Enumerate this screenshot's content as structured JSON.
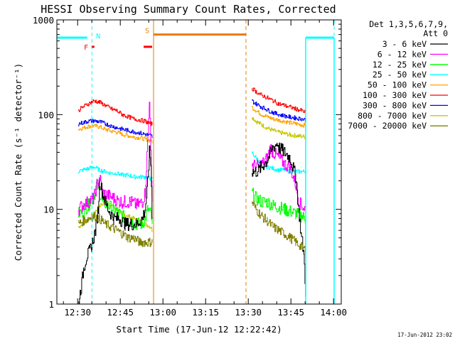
{
  "chart_data": {
    "type": "line",
    "title": "HESSI Observing Summary Count Rates, Corrected",
    "xlabel": "Start Time (17-Jun-12 12:22:42)",
    "ylabel": "Corrected Count Rate (s⁻¹ detector⁻¹)",
    "y_scale": "log",
    "ylim": [
      1,
      1000
    ],
    "x_unit": "minutes since 12:22:42",
    "xlim": [
      0,
      100
    ],
    "x_tick_minutes": [
      7.3,
      22.3,
      37.3,
      52.3,
      67.3,
      82.3,
      97.3
    ],
    "x_tick_labels": [
      "12:30",
      "12:45",
      "13:00",
      "13:15",
      "13:30",
      "13:45",
      "14:00"
    ],
    "y_tick_values": [
      1,
      10,
      100,
      1000
    ],
    "y_tick_labels": [
      "1",
      "10",
      "100",
      "1000"
    ],
    "legend_header": [
      "Det 1,3,5,6,7,9,",
      "Att 0"
    ],
    "legend_position": "right",
    "series": [
      {
        "name": "3 - 6 keV",
        "color": "#000000",
        "segments": [
          [
            [
              7.5,
              1
            ],
            [
              8.5,
              1.5
            ],
            [
              9.5,
              2.5
            ],
            [
              10.5,
              3.2
            ],
            [
              11.5,
              3.6
            ],
            [
              12.5,
              4.5
            ],
            [
              13.5,
              6
            ],
            [
              14.5,
              10
            ],
            [
              15,
              20
            ],
            [
              16,
              15
            ],
            [
              17,
              12
            ],
            [
              18,
              10
            ],
            [
              20,
              8
            ],
            [
              22,
              8
            ],
            [
              24,
              7
            ],
            [
              26,
              7
            ],
            [
              28,
              7
            ],
            [
              30,
              8
            ],
            [
              31,
              10
            ],
            [
              32,
              20
            ],
            [
              32.5,
              40
            ],
            [
              33,
              30
            ],
            [
              33.5,
              8
            ]
          ],
          [
            [
              68.5,
              25
            ],
            [
              70,
              25
            ],
            [
              71,
              26
            ],
            [
              72,
              28
            ],
            [
              74,
              33
            ],
            [
              76,
              45
            ],
            [
              77.5,
              50
            ],
            [
              78,
              45
            ],
            [
              80,
              40
            ],
            [
              82,
              35
            ],
            [
              84,
              22
            ],
            [
              85,
              10
            ],
            [
              86,
              5
            ],
            [
              87,
              3
            ],
            [
              87.5,
              1
            ]
          ]
        ]
      },
      {
        "name": "6 - 12 keV",
        "color": "#ff00ff",
        "segments": [
          [
            [
              7.5,
              10
            ],
            [
              9,
              11
            ],
            [
              11,
              12
            ],
            [
              13,
              13
            ],
            [
              14,
              18
            ],
            [
              15,
              22
            ],
            [
              16,
              15
            ],
            [
              18,
              14
            ],
            [
              20,
              13
            ],
            [
              22,
              12
            ],
            [
              24,
              12
            ],
            [
              26,
              12
            ],
            [
              28,
              11
            ],
            [
              30,
              12
            ],
            [
              31,
              15
            ],
            [
              32,
              60
            ],
            [
              32.5,
              150
            ],
            [
              33,
              40
            ],
            [
              33.5,
              12
            ]
          ],
          [
            [
              68.5,
              30
            ],
            [
              70,
              28
            ],
            [
              72,
              30
            ],
            [
              74,
              35
            ],
            [
              75,
              45
            ],
            [
              76,
              40
            ],
            [
              78,
              35
            ],
            [
              80,
              30
            ],
            [
              82,
              28
            ],
            [
              84,
              18
            ],
            [
              85,
              12
            ],
            [
              86,
              11
            ],
            [
              87.5,
              10
            ]
          ]
        ]
      },
      {
        "name": "12 - 25 keV",
        "color": "#00ff00",
        "segments": [
          [
            [
              7.5,
              9
            ],
            [
              9,
              9.5
            ],
            [
              11,
              11
            ],
            [
              13,
              14
            ],
            [
              14,
              18
            ],
            [
              15,
              15
            ],
            [
              16,
              12
            ],
            [
              18,
              11
            ],
            [
              20,
              10
            ],
            [
              22,
              9
            ],
            [
              24,
              8
            ],
            [
              26,
              7.5
            ],
            [
              28,
              7
            ],
            [
              30,
              7
            ],
            [
              31,
              8
            ],
            [
              32,
              10
            ],
            [
              33,
              9
            ],
            [
              33.5,
              7
            ]
          ],
          [
            [
              68.5,
              15
            ],
            [
              70,
              13
            ],
            [
              72,
              12
            ],
            [
              74,
              12
            ],
            [
              76,
              11
            ],
            [
              78,
              10.5
            ],
            [
              80,
              10
            ],
            [
              82,
              9.5
            ],
            [
              84,
              9
            ],
            [
              86,
              8.5
            ],
            [
              87.5,
              8
            ]
          ]
        ]
      },
      {
        "name": "25 - 50 keV",
        "color": "#00ffff",
        "segments": [
          [
            [
              7.5,
              25
            ],
            [
              9,
              26
            ],
            [
              11,
              27
            ],
            [
              13,
              28
            ],
            [
              15,
              26
            ],
            [
              17,
              25
            ],
            [
              19,
              24
            ],
            [
              21,
              24
            ],
            [
              23,
              23
            ],
            [
              25,
              23
            ],
            [
              27,
              22
            ],
            [
              29,
              22
            ],
            [
              31,
              22
            ],
            [
              33,
              21
            ],
            [
              33.5,
              21
            ]
          ],
          [
            [
              68.5,
              40
            ],
            [
              70,
              35
            ],
            [
              72,
              30
            ],
            [
              74,
              28
            ],
            [
              76,
              27
            ],
            [
              78,
              26
            ],
            [
              80,
              26
            ],
            [
              82,
              25
            ],
            [
              84,
              25
            ],
            [
              86,
              25
            ],
            [
              87.5,
              25
            ]
          ]
        ]
      },
      {
        "name": "50 - 100 keV",
        "color": "#ffa500",
        "segments": [
          [
            [
              7.5,
              70
            ],
            [
              9,
              72
            ],
            [
              11,
              75
            ],
            [
              13,
              76
            ],
            [
              15,
              74
            ],
            [
              17,
              70
            ],
            [
              19,
              67
            ],
            [
              21,
              65
            ],
            [
              23,
              62
            ],
            [
              25,
              60
            ],
            [
              27,
              58
            ],
            [
              29,
              57
            ],
            [
              31,
              55
            ],
            [
              33,
              53
            ],
            [
              33.5,
              52
            ]
          ],
          [
            [
              68.5,
              120
            ],
            [
              70,
              110
            ],
            [
              72,
              100
            ],
            [
              74,
              95
            ],
            [
              76,
              90
            ],
            [
              78,
              87
            ],
            [
              80,
              85
            ],
            [
              82,
              82
            ],
            [
              84,
              80
            ],
            [
              86,
              78
            ],
            [
              87.5,
              77
            ]
          ]
        ]
      },
      {
        "name": "100 - 300 keV",
        "color": "#ff0000",
        "segments": [
          [
            [
              7.5,
              110
            ],
            [
              9,
              120
            ],
            [
              11,
              130
            ],
            [
              13,
              140
            ],
            [
              15,
              135
            ],
            [
              17,
              125
            ],
            [
              19,
              115
            ],
            [
              21,
              110
            ],
            [
              23,
              100
            ],
            [
              25,
              95
            ],
            [
              27,
              90
            ],
            [
              29,
              88
            ],
            [
              31,
              85
            ],
            [
              33,
              80
            ],
            [
              33.5,
              80
            ]
          ],
          [
            [
              68.5,
              190
            ],
            [
              70,
              175
            ],
            [
              72,
              160
            ],
            [
              74,
              150
            ],
            [
              76,
              140
            ],
            [
              78,
              130
            ],
            [
              80,
              125
            ],
            [
              82,
              120
            ],
            [
              84,
              115
            ],
            [
              86,
              110
            ],
            [
              87.5,
              105
            ]
          ]
        ]
      },
      {
        "name": "300 - 800 keV",
        "color": "#0000ff",
        "segments": [
          [
            [
              7.5,
              80
            ],
            [
              9,
              82
            ],
            [
              11,
              85
            ],
            [
              13,
              86
            ],
            [
              15,
              84
            ],
            [
              17,
              80
            ],
            [
              19,
              76
            ],
            [
              21,
              73
            ],
            [
              23,
              70
            ],
            [
              25,
              68
            ],
            [
              27,
              66
            ],
            [
              29,
              64
            ],
            [
              31,
              62
            ],
            [
              33,
              60
            ],
            [
              33.5,
              58
            ]
          ],
          [
            [
              68.5,
              140
            ],
            [
              70,
              130
            ],
            [
              72,
              120
            ],
            [
              74,
              112
            ],
            [
              76,
              105
            ],
            [
              78,
              100
            ],
            [
              80,
              97
            ],
            [
              82,
              94
            ],
            [
              84,
              92
            ],
            [
              86,
              90
            ],
            [
              87.5,
              88
            ]
          ]
        ]
      },
      {
        "name": "800 - 7000 keV",
        "color": "#c8c800",
        "segments": [
          [
            [
              7.5,
              6.5
            ],
            [
              9,
              7
            ],
            [
              11,
              8
            ],
            [
              13,
              9
            ],
            [
              15,
              11
            ],
            [
              17,
              12
            ],
            [
              19,
              11
            ],
            [
              21,
              10
            ],
            [
              23,
              9
            ],
            [
              25,
              8.5
            ],
            [
              27,
              8
            ],
            [
              29,
              7.5
            ],
            [
              31,
              7
            ],
            [
              33,
              6.5
            ],
            [
              33.5,
              6
            ]
          ],
          [
            [
              68.5,
              95
            ],
            [
              70,
              85
            ],
            [
              72,
              78
            ],
            [
              74,
              72
            ],
            [
              76,
              68
            ],
            [
              78,
              65
            ],
            [
              80,
              63
            ],
            [
              82,
              61
            ],
            [
              84,
              60
            ],
            [
              86,
              59
            ],
            [
              87.5,
              58
            ]
          ]
        ]
      },
      {
        "name": "7000 - 20000 keV",
        "color": "#808000",
        "segments": [
          [
            [
              7.5,
              7
            ],
            [
              9,
              7.5
            ],
            [
              11,
              8
            ],
            [
              13,
              8.5
            ],
            [
              15,
              8
            ],
            [
              17,
              7
            ],
            [
              19,
              6.5
            ],
            [
              21,
              6
            ],
            [
              23,
              5.5
            ],
            [
              25,
              5
            ],
            [
              27,
              5
            ],
            [
              29,
              4.5
            ],
            [
              31,
              4.5
            ],
            [
              33,
              4.5
            ],
            [
              33.5,
              4.5
            ]
          ],
          [
            [
              68.5,
              12
            ],
            [
              70,
              10
            ],
            [
              72,
              8.5
            ],
            [
              74,
              7.5
            ],
            [
              76,
              6.5
            ],
            [
              78,
              6
            ],
            [
              80,
              5.5
            ],
            [
              82,
              5
            ],
            [
              84,
              4.5
            ],
            [
              86,
              4
            ],
            [
              87.5,
              3.7
            ]
          ]
        ]
      }
    ],
    "attenuator_state": {
      "color": "#00ffff",
      "segments": [
        {
          "x": [
            0,
            10.7
          ],
          "y": 650
        },
        {
          "x": [
            87.5,
            97.5
          ],
          "y": 650
        }
      ],
      "step_lines_x": [
        87.5,
        97.5
      ],
      "marker_label": "N",
      "marker_x": 12.3
    },
    "saa_interval": {
      "color": "#e87a00",
      "label": "S",
      "x": [
        34,
        66.5
      ],
      "y": 700
    },
    "flare_flags": {
      "color": "#ff0000",
      "label": "F",
      "segments": [
        [
          12.3,
          13.2
        ],
        [
          30.5,
          33.5
        ]
      ],
      "y": 520
    },
    "vertical_markers": [
      {
        "x": 12.3,
        "color": "#00ffff",
        "style": "dashed"
      },
      {
        "x": 97.5,
        "color": "#00ffff",
        "style": "dashed"
      },
      {
        "x": 34.0,
        "color": "#e87a00",
        "style": "solid"
      },
      {
        "x": 66.5,
        "color": "#e87a00",
        "style": "dashed"
      }
    ],
    "footer_timestamp": "17-Jun-2012 23:02"
  }
}
